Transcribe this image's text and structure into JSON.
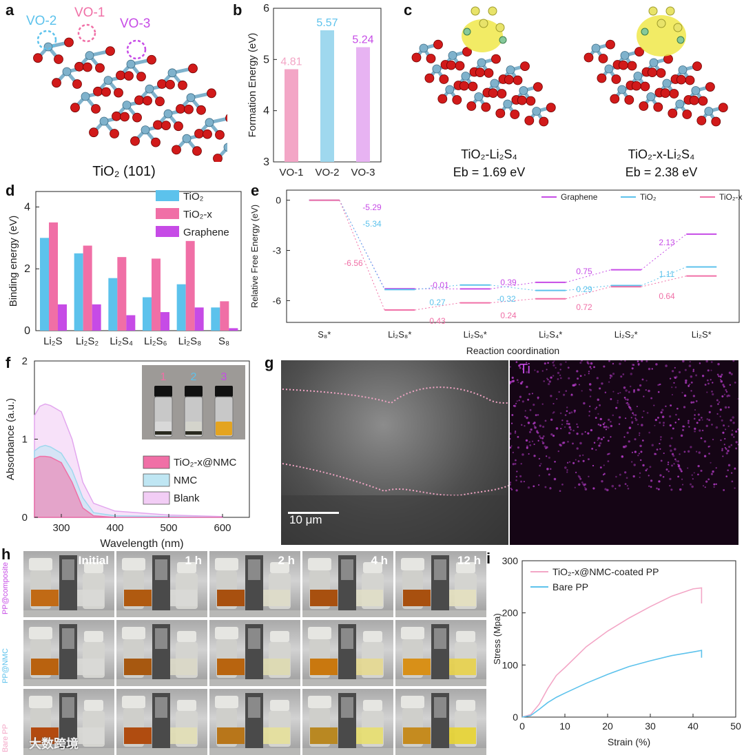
{
  "colors": {
    "tio2": "#5cc2ec",
    "tio2x": "#f06fa6",
    "graphene": "#c64be6",
    "pink_light": "#f3a6c6",
    "blue_light": "#9fd8ee",
    "purple_light": "#e7b3f2",
    "atom_ti": "#7fb2cc",
    "atom_o": "#d11a1a"
  },
  "panels": {
    "a": "a",
    "b": "b",
    "c": "c",
    "d": "d",
    "e": "e",
    "f": "f",
    "g": "g",
    "h": "h",
    "i": "i"
  },
  "panel_a": {
    "caption": "TiO₂ (101)",
    "vo1": "VO-1",
    "vo2": "VO-2",
    "vo3": "VO-3"
  },
  "panel_c": {
    "left_title": "TiO₂-Li₂S₄",
    "left_eb": "Eb = 1.69 eV",
    "right_title": "TiO₂-x-Li₂S₄",
    "right_eb": "Eb = 2.38 eV"
  },
  "panel_g": {
    "scale": "10 μm",
    "map_label": "Ti"
  },
  "panel_h": {
    "times": [
      "Initial",
      "1 h",
      "2 h",
      "4 h",
      "12 h"
    ],
    "rows": [
      "PP@composite",
      "PP@NMC",
      "Bare PP"
    ],
    "watermark": "大数跨境"
  },
  "chart_data": [
    {
      "id": "b",
      "type": "bar",
      "categories": [
        "VO-1",
        "VO-2",
        "VO-3"
      ],
      "values": [
        4.81,
        5.57,
        5.24
      ],
      "value_labels": [
        "4.81",
        "5.57",
        "5.24"
      ],
      "ylabel": "Formation Energy (eV)",
      "ylim": [
        3,
        6
      ],
      "yticks": [
        "3",
        "4",
        "5",
        "6"
      ]
    },
    {
      "id": "d",
      "type": "bar",
      "categories": [
        "Li2S",
        "Li2S2",
        "Li2S4",
        "Li2S6",
        "Li2S8",
        "S8"
      ],
      "series": [
        {
          "name": "TiO2",
          "values": [
            3.0,
            2.5,
            1.7,
            1.08,
            1.5,
            0.75
          ]
        },
        {
          "name": "TiO2-x",
          "values": [
            3.5,
            2.75,
            2.38,
            2.33,
            2.9,
            0.95
          ]
        },
        {
          "name": "Graphene",
          "values": [
            0.85,
            0.85,
            0.5,
            0.6,
            0.75,
            0.08
          ]
        }
      ],
      "legend": [
        "TiO₂",
        "TiO₂-x",
        "Graphene"
      ],
      "tick_labels": [
        "Li₂S",
        "Li₂S₂",
        "Li₂S₄",
        "Li₂S₆",
        "Li₂S₈",
        "S₈"
      ],
      "ylabel": "Binding energy (eV)",
      "ylim": [
        0,
        4.5
      ],
      "yticks": [
        "0",
        "2",
        "4"
      ]
    },
    {
      "id": "e",
      "type": "line",
      "title": "",
      "steps": [
        "S8*",
        "Li2S8*",
        "Li2S6*",
        "Li2S4*",
        "Li2S2*",
        "Li2S*"
      ],
      "tick_labels": [
        "S₈*",
        "Li₂S₈*",
        "Li₂S₆*",
        "Li₂S₄*",
        "Li₂S₂*",
        "Li₂S*"
      ],
      "series": [
        {
          "name": "Graphene",
          "values": [
            0,
            -5.29,
            -5.3,
            -4.91,
            -4.16,
            -2.03
          ]
        },
        {
          "name": "TiO2",
          "values": [
            0,
            -5.34,
            -5.07,
            -5.39,
            -5.1,
            -3.99
          ]
        },
        {
          "name": "TiO2-x",
          "values": [
            0,
            -6.56,
            -6.13,
            -5.89,
            -5.17,
            -4.53
          ]
        }
      ],
      "legend": [
        "Graphene",
        "TiO₂",
        "TiO₂-x"
      ],
      "annotations": [
        "-5.29",
        "-5.34",
        "-6.56",
        "-0.01",
        "0.27",
        "0.43",
        "0.39",
        "-0.32",
        "0.24",
        "0.75",
        "0.29",
        "0.72",
        "2.13",
        "1.11",
        "0.64"
      ],
      "ylabel": "Relative Free Energy (eV)",
      "xlabel": "Reaction coordination",
      "ylim": [
        -7.3,
        0.6
      ],
      "yticks": [
        "0",
        "-3",
        "-6"
      ]
    },
    {
      "id": "f",
      "type": "area",
      "series": [
        {
          "name": "TiO2-x@NMC",
          "x": [
            250,
            260,
            270,
            280,
            300,
            320,
            340,
            360,
            400,
            500,
            600
          ],
          "values": [
            0.75,
            0.78,
            0.78,
            0.77,
            0.7,
            0.45,
            0.12,
            0.02,
            0.0,
            0.0,
            0.0
          ]
        },
        {
          "name": "NMC",
          "x": [
            250,
            260,
            270,
            280,
            300,
            320,
            340,
            360,
            400,
            500,
            600
          ],
          "values": [
            0.85,
            0.9,
            0.92,
            0.9,
            0.82,
            0.6,
            0.25,
            0.06,
            0.02,
            0.01,
            0.0
          ]
        },
        {
          "name": "Blank",
          "x": [
            250,
            260,
            270,
            280,
            300,
            320,
            340,
            360,
            400,
            500,
            600
          ],
          "values": [
            1.3,
            1.42,
            1.45,
            1.43,
            1.35,
            1.0,
            0.45,
            0.18,
            0.08,
            0.03,
            0.01
          ]
        }
      ],
      "legend": [
        "TiO₂-x@NMC",
        "NMC",
        "Blank"
      ],
      "vial_labels": [
        "1",
        "2",
        "3"
      ],
      "xlabel": "Wavelength (nm)",
      "ylabel": "Absorbance (a.u.)",
      "xlim": [
        250,
        650
      ],
      "ylim": [
        0,
        2
      ],
      "xticks": [
        "300",
        "400",
        "500",
        "600"
      ],
      "yticks": [
        "0",
        "1",
        "2"
      ]
    },
    {
      "id": "i",
      "type": "line",
      "series": [
        {
          "name": "TiO2-x@NMC-coated PP",
          "x": [
            0,
            2,
            4,
            6,
            8,
            10,
            15,
            20,
            25,
            30,
            35,
            40,
            42
          ],
          "values": [
            0,
            5,
            25,
            55,
            80,
            95,
            135,
            165,
            190,
            212,
            232,
            246,
            248
          ]
        },
        {
          "name": "Bare PP",
          "x": [
            0,
            2,
            4,
            6,
            8,
            10,
            15,
            20,
            25,
            30,
            35,
            40,
            42
          ],
          "values": [
            0,
            3,
            15,
            28,
            38,
            46,
            65,
            82,
            97,
            108,
            118,
            125,
            128
          ]
        }
      ],
      "legend": [
        "TiO₂-x@NMC-coated PP",
        "Bare PP"
      ],
      "xlabel": "Strain (%)",
      "ylabel": "Stress (Mpa)",
      "xlim": [
        0,
        50
      ],
      "ylim": [
        0,
        300
      ],
      "xticks": [
        "0",
        "10",
        "20",
        "30",
        "40",
        "50"
      ],
      "yticks": [
        "0",
        "100",
        "200",
        "300"
      ]
    }
  ]
}
